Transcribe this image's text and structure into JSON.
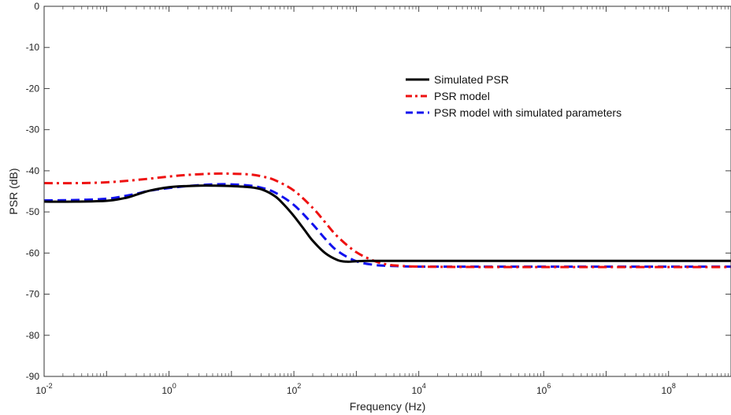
{
  "chart_data": {
    "type": "line",
    "title": "",
    "xlabel": "Frequency (Hz)",
    "ylabel": "PSR (dB)",
    "xscale": "log",
    "xlim": [
      0.01,
      1000000000
    ],
    "ylim": [
      -90,
      0
    ],
    "grid": false,
    "legend_position": "top-right",
    "x_ticks": [
      {
        "value": 0.01,
        "base": "10",
        "exp": "-2"
      },
      {
        "value": 1,
        "base": "10",
        "exp": "0"
      },
      {
        "value": 100,
        "base": "10",
        "exp": "2"
      },
      {
        "value": 10000,
        "base": "10",
        "exp": "4"
      },
      {
        "value": 1000000,
        "base": "10",
        "exp": "6"
      },
      {
        "value": 100000000,
        "base": "10",
        "exp": "8"
      }
    ],
    "y_ticks": [
      0,
      -10,
      -20,
      -30,
      -40,
      -50,
      -60,
      -70,
      -80,
      -90
    ],
    "series": [
      {
        "name": "Simulated PSR",
        "color": "#000000",
        "style": "solid",
        "x": [
          0.01,
          0.0316,
          0.1,
          0.2,
          0.316,
          0.5,
          1,
          2,
          3.16,
          5,
          10,
          20,
          31.6,
          50,
          70,
          100,
          150,
          200,
          316,
          500,
          700,
          1000,
          1500,
          2000,
          3160,
          10000,
          100000,
          1000000,
          10000000,
          100000000,
          1000000000
        ],
        "y": [
          -47.5,
          -47.5,
          -47.3,
          -46.6,
          -45.7,
          -44.8,
          -44.0,
          -43.7,
          -43.6,
          -43.6,
          -43.7,
          -44.0,
          -44.6,
          -46.2,
          -48.3,
          -51.0,
          -54.5,
          -57.0,
          -60.0,
          -61.7,
          -62.1,
          -62.0,
          -61.9,
          -61.9,
          -61.9,
          -61.9,
          -61.9,
          -61.9,
          -61.9,
          -61.9,
          -61.9
        ]
      },
      {
        "name": "PSR model",
        "color": "#ee1111",
        "style": "dashdot",
        "x": [
          0.01,
          0.0316,
          0.1,
          0.316,
          1,
          2,
          5,
          10,
          20,
          31.6,
          50,
          100,
          200,
          316,
          500,
          1000,
          2000,
          3160,
          5000,
          10000,
          100000,
          1000000,
          10000000,
          100000000,
          1000000000
        ],
        "y": [
          -43.0,
          -43.0,
          -42.8,
          -42.2,
          -41.4,
          -41.0,
          -40.7,
          -40.7,
          -40.9,
          -41.4,
          -42.3,
          -44.8,
          -49.0,
          -52.5,
          -56.0,
          -59.8,
          -62.0,
          -62.8,
          -63.1,
          -63.3,
          -63.4,
          -63.4,
          -63.4,
          -63.4,
          -63.4
        ]
      },
      {
        "name": "PSR model with simulated parameters",
        "color": "#1111ee",
        "style": "dashed",
        "x": [
          0.01,
          0.0316,
          0.1,
          0.2,
          0.316,
          0.5,
          1,
          2,
          5,
          10,
          20,
          31.6,
          50,
          100,
          200,
          316,
          500,
          1000,
          2000,
          3160,
          5000,
          10000,
          100000,
          1000000,
          10000000,
          100000000,
          1000000000
        ],
        "y": [
          -47.2,
          -47.1,
          -46.8,
          -46.1,
          -45.5,
          -44.8,
          -44.2,
          -43.7,
          -43.3,
          -43.3,
          -43.6,
          -44.2,
          -45.3,
          -48.3,
          -53.0,
          -56.5,
          -59.5,
          -62.0,
          -62.9,
          -63.1,
          -63.2,
          -63.3,
          -63.3,
          -63.3,
          -63.3,
          -63.3,
          -63.3
        ]
      }
    ]
  }
}
